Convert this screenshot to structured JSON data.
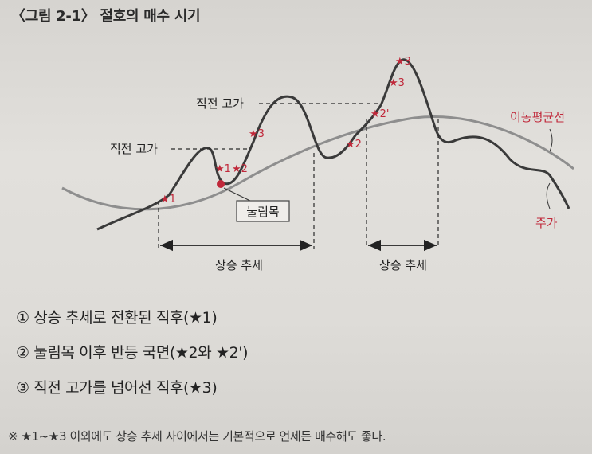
{
  "figure": {
    "title": "〈그림 2-1〉 절호의 매수 시기",
    "labels": {
      "prev_high_1": "직전 고가",
      "prev_high_2": "직전 고가",
      "moving_average": "이동평균선",
      "stock_price": "주가",
      "pullback": "눌림목",
      "uptrend_1": "상승 추세",
      "uptrend_2": "상승 추세"
    },
    "markers": {
      "a1": "★1",
      "a2": "★2",
      "a3": "★3",
      "a4": "★1",
      "a5": "★2",
      "b1": "★2",
      "b2": "★2'",
      "b3": "★3",
      "b4": "★3"
    },
    "colors": {
      "price_line": "#3a3a3a",
      "moving_average_line": "#8e8e8e",
      "marker": "#c0283a",
      "dashed_line": "#2a2a2a"
    }
  },
  "notes": [
    "① 상승 추세로 전환된 직후(★1)",
    "② 눌림목 이후 반등 국면(★2와 ★2')",
    "③ 직전 고가를 넘어선 직후(★3)"
  ],
  "footnote": "※ ★1~★3 이외에도 상승 추세 사이에서는 기본적으로 언제든 매수해도 좋다."
}
